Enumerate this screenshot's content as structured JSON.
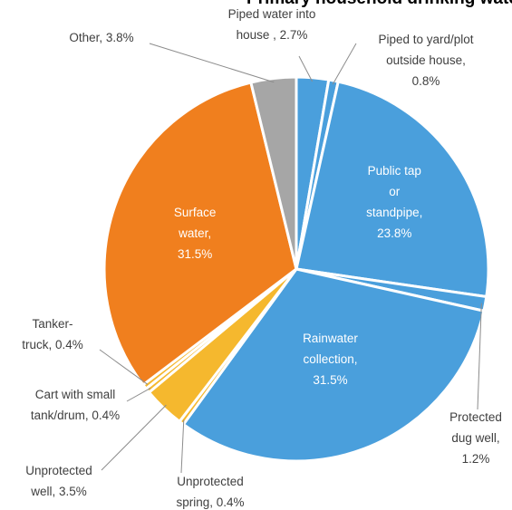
{
  "chart_data": {
    "type": "pie",
    "title": "Primary household drinking water sources",
    "slices": [
      {
        "label": "Piped water into house",
        "lines": [
          "Piped water into",
          "house , 2.7%"
        ],
        "value": 2.7,
        "color": "#4a9fdc",
        "label_pos": "outside-top"
      },
      {
        "label": "Piped to yard/plot outside house",
        "lines": [
          "Piped to yard/plot",
          "outside house,",
          "0.8%"
        ],
        "value": 0.8,
        "color": "#4a9fdc",
        "label_pos": "outside-top-right"
      },
      {
        "label": "Public tap or standpipe",
        "lines": [
          "Public tap",
          "or",
          "standpipe,",
          "23.8%"
        ],
        "value": 23.8,
        "color": "#4a9fdc",
        "label_pos": "inside"
      },
      {
        "label": "Protected dug well",
        "lines": [
          "Protected",
          "dug well,",
          "1.2%"
        ],
        "value": 1.2,
        "color": "#4a9fdc",
        "label_pos": "outside-right"
      },
      {
        "label": "Rainwater collection",
        "lines": [
          "Rainwater",
          "collection,",
          "31.5%"
        ],
        "value": 31.5,
        "color": "#4a9fdc",
        "label_pos": "inside"
      },
      {
        "label": "Unprotected spring",
        "lines": [
          "Unprotected",
          "spring, 0.4%"
        ],
        "value": 0.4,
        "color": "#f5b82e",
        "label_pos": "outside-bottom"
      },
      {
        "label": "Unprotected well",
        "lines": [
          "Unprotected",
          "well, 3.5%"
        ],
        "value": 3.5,
        "color": "#f5b82e",
        "label_pos": "outside-bottom-left"
      },
      {
        "label": "Cart with small tank/drum",
        "lines": [
          "Cart with small",
          "tank/drum, 0.4%"
        ],
        "value": 0.4,
        "color": "#f5b82e",
        "label_pos": "outside-left"
      },
      {
        "label": "Tanker-truck",
        "lines": [
          "Tanker-",
          "truck, 0.4%"
        ],
        "value": 0.4,
        "color": "#f5b82e",
        "label_pos": "outside-left"
      },
      {
        "label": "Surface water",
        "lines": [
          "Surface",
          "water,",
          "31.5%"
        ],
        "value": 31.5,
        "color": "#f07f1e",
        "label_pos": "inside"
      },
      {
        "label": "Other",
        "lines": [
          "Other, 3.8%"
        ],
        "value": 3.8,
        "color": "#a6a6a6",
        "label_pos": "outside-top-left"
      }
    ]
  }
}
